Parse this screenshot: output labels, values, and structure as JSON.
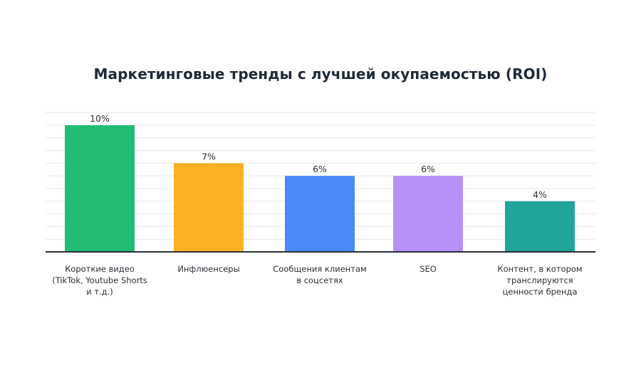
{
  "chart_data": {
    "type": "bar",
    "title": "Маркетинговые тренды с лучшей окупаемостью (ROI)",
    "xlabel": "",
    "ylabel": "",
    "ylim": [
      0,
      11
    ],
    "grid": true,
    "legend": "none",
    "categories": [
      "Короткие видео (TikTok, Youtube Shorts и т.д.)",
      "Инфлюенсеры",
      "Сообщения клиентам в соцсетях",
      "SEO",
      "Контент, в котором транслируются ценности бренда"
    ],
    "category_lines": [
      [
        "Короткие видео",
        "(TikTok, Youtube Shorts",
        "и т.д.)"
      ],
      [
        "Инфлюенсеры"
      ],
      [
        "Сообщения клиентам",
        "в соцсетях"
      ],
      [
        "SEO"
      ],
      [
        "Контент, в котором",
        "транслируются",
        "ценности бренда"
      ]
    ],
    "values": [
      10,
      7,
      6,
      6,
      4
    ],
    "data_labels": [
      "10%",
      "7%",
      "6%",
      "6%",
      "4%"
    ],
    "colors": [
      "#22bc74",
      "#fbb125",
      "#4a89f7",
      "#b691f6",
      "#21a49a"
    ]
  }
}
